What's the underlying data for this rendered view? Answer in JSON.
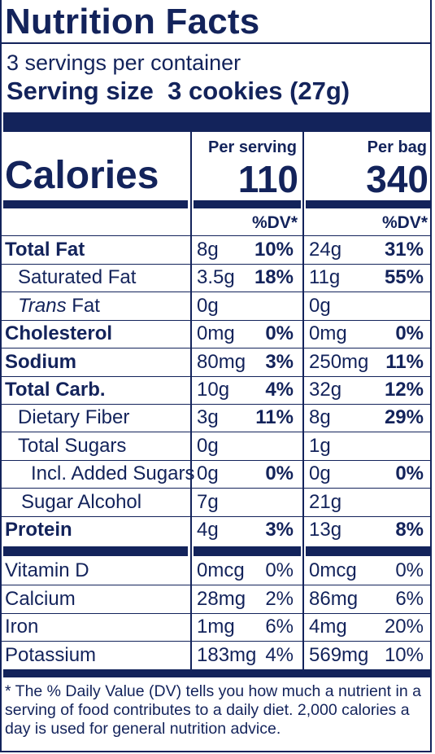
{
  "title": "Nutrition Facts",
  "servings_per_container": "3 servings per container",
  "serving_size_label": "Serving size",
  "serving_size_value": "3 cookies (27g)",
  "columns": {
    "per_serving": "Per serving",
    "per_bag": "Per bag"
  },
  "calories": {
    "label": "Calories",
    "per_serving": "110",
    "per_bag": "340"
  },
  "dv_header": "%DV*",
  "nutrients": [
    {
      "name": "Total Fat",
      "style": "bold",
      "serving_amount": "8g",
      "serving_dv": "10%",
      "bag_amount": "24g",
      "bag_dv": "31%"
    },
    {
      "name": "Saturated Fat",
      "style": "indent",
      "serving_amount": "3.5g",
      "serving_dv": "18%",
      "bag_amount": "11g",
      "bag_dv": "55%"
    },
    {
      "name": "Trans Fat",
      "style": "trans",
      "serving_amount": "0g",
      "serving_dv": "",
      "bag_amount": "0g",
      "bag_dv": ""
    },
    {
      "name": "Cholesterol",
      "style": "bold",
      "serving_amount": "0mg",
      "serving_dv": "0%",
      "bag_amount": "0mg",
      "bag_dv": "0%"
    },
    {
      "name": "Sodium",
      "style": "bold",
      "serving_amount": "80mg",
      "serving_dv": "3%",
      "bag_amount": "250mg",
      "bag_dv": "11%"
    },
    {
      "name": "Total Carb.",
      "style": "bold",
      "serving_amount": "10g",
      "serving_dv": "4%",
      "bag_amount": "32g",
      "bag_dv": "12%"
    },
    {
      "name": "Dietary Fiber",
      "style": "indent",
      "serving_amount": "3g",
      "serving_dv": "11%",
      "bag_amount": "8g",
      "bag_dv": "29%"
    },
    {
      "name": "Total Sugars",
      "style": "indent",
      "serving_amount": "0g",
      "serving_dv": "",
      "bag_amount": "1g",
      "bag_dv": ""
    },
    {
      "name": "Incl. Added Sugars",
      "style": "indent2",
      "serving_amount": "0g",
      "serving_dv": "0%",
      "bag_amount": "0g",
      "bag_dv": "0%"
    },
    {
      "name": "Sugar Alcohol",
      "style": "indent",
      "serving_amount": "7g",
      "serving_dv": "",
      "bag_amount": "21g",
      "bag_dv": ""
    },
    {
      "name": "Protein",
      "style": "bold",
      "serving_amount": "4g",
      "serving_dv": "3%",
      "bag_amount": "13g",
      "bag_dv": "8%"
    }
  ],
  "vitamins": [
    {
      "name": "Vitamin D",
      "serving_amount": "0mcg",
      "serving_dv": "0%",
      "bag_amount": "0mcg",
      "bag_dv": "0%"
    },
    {
      "name": "Calcium",
      "serving_amount": "28mg",
      "serving_dv": "2%",
      "bag_amount": "86mg",
      "bag_dv": "6%"
    },
    {
      "name": "Iron",
      "serving_amount": "1mg",
      "serving_dv": "6%",
      "bag_amount": "4mg",
      "bag_dv": "20%"
    },
    {
      "name": "Potassium",
      "serving_amount": "183mg",
      "serving_dv": "4%",
      "bag_amount": "569mg",
      "bag_dv": "10%"
    }
  ],
  "footnote": "* The % Daily Value (DV) tells you how much a nutrient in a serving of food contributes to a daily diet. 2,000 calories a day is used for general nutrition advice."
}
